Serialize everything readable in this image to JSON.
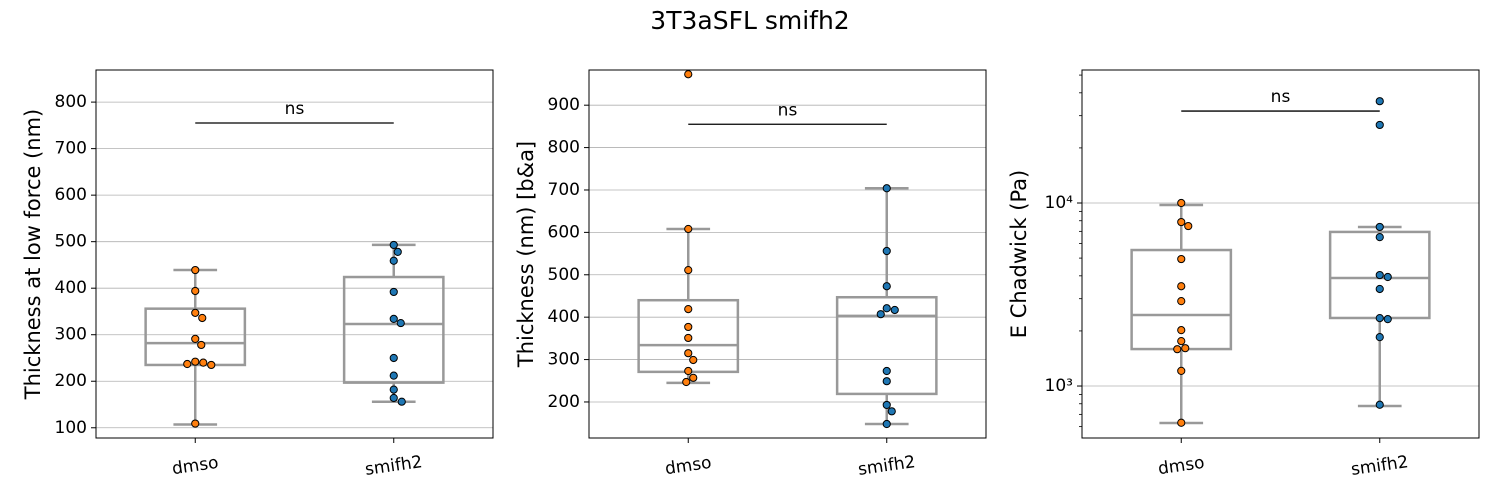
{
  "title": "3T3aSFL smifh2",
  "chart_data": [
    {
      "type": "box",
      "ylabel": "Thickness at low force (nm)",
      "categories": [
        "dmso",
        "smifh2"
      ],
      "ylim": [
        78,
        869
      ],
      "yticks": [
        100,
        200,
        300,
        400,
        500,
        600,
        700,
        800
      ],
      "log": false,
      "grid": true,
      "box_color": "#999999",
      "point_colors": [
        "#ff7f0e",
        "#1f77b4"
      ],
      "boxes": [
        {
          "whislo": 107,
          "q1": 235,
          "med": 282,
          "q3": 356,
          "whishi": 439
        },
        {
          "whislo": 156,
          "q1": 197,
          "med": 323,
          "q3": 424,
          "whishi": 493
        }
      ],
      "points": [
        [
          439,
          394,
          347,
          336,
          291,
          278,
          242,
          240,
          237,
          235,
          109
        ],
        [
          493,
          478,
          459,
          392,
          334,
          325,
          250,
          212,
          182,
          164,
          156
        ]
      ],
      "annotation": {
        "text": "ns",
        "y": 755
      }
    },
    {
      "type": "box",
      "ylabel": "Thickness (nm) [b&a]",
      "categories": [
        "dmso",
        "smifh2"
      ],
      "ylim": [
        115,
        983
      ],
      "yticks": [
        200,
        300,
        400,
        500,
        600,
        700,
        800,
        900
      ],
      "log": false,
      "grid": true,
      "box_color": "#999999",
      "point_colors": [
        "#ff7f0e",
        "#1f77b4"
      ],
      "boxes": [
        {
          "whislo": 245,
          "q1": 271,
          "med": 334,
          "q3": 440,
          "whishi": 608
        },
        {
          "whislo": 148,
          "q1": 219,
          "med": 403,
          "q3": 447,
          "whishi": 704
        }
      ],
      "points": [
        [
          973,
          608,
          511,
          419,
          377,
          351,
          315,
          299,
          273,
          257,
          247
        ],
        [
          704,
          556,
          473,
          421,
          417,
          407,
          273,
          249,
          193,
          178,
          148
        ]
      ],
      "annotation": {
        "text": "ns",
        "y": 855
      }
    },
    {
      "type": "box",
      "ylabel": "E Chadwick (Pa)",
      "categories": [
        "dmso",
        "smifh2"
      ],
      "ylim": [
        520,
        53300
      ],
      "yticks": [
        {
          "value": 1000,
          "label": "10³"
        },
        {
          "value": 10000,
          "label": "10⁴"
        }
      ],
      "log": true,
      "grid": true,
      "box_color": "#999999",
      "point_colors": [
        "#ff7f0e",
        "#1f77b4"
      ],
      "boxes": [
        {
          "whislo": 628,
          "q1": 1592,
          "med": 2443,
          "q3": 5534,
          "whishi": 9750
        },
        {
          "whislo": 778,
          "q1": 2354,
          "med": 3890,
          "q3": 6950,
          "whishi": 7400
        }
      ],
      "points": [
        [
          10000,
          7870,
          7480,
          4940,
          3510,
          2910,
          2020,
          1760,
          1610,
          1590,
          1210,
          630
        ],
        [
          36000,
          26700,
          7400,
          6510,
          4040,
          3940,
          3390,
          2350,
          2320,
          1850,
          790
        ]
      ],
      "annotation": {
        "text": "ns",
        "y": 31800
      }
    }
  ]
}
